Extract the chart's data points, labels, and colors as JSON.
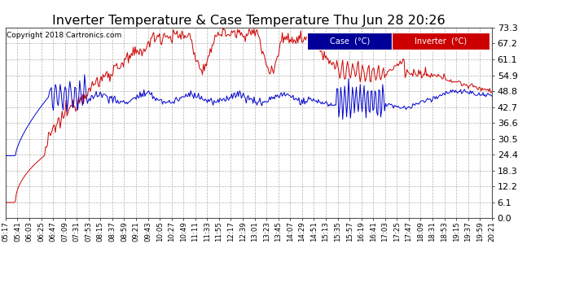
{
  "title": "Inverter Temperature & Case Temperature Thu Jun 28 20:26",
  "copyright": "Copyright 2018 Cartronics.com",
  "legend_case": "Case  (°C)",
  "legend_inverter": "Inverter  (°C)",
  "yticks": [
    0.0,
    6.1,
    12.2,
    18.3,
    24.4,
    30.5,
    36.6,
    42.7,
    48.8,
    54.9,
    61.1,
    67.2,
    73.3
  ],
  "ymin": 0.0,
  "ymax": 73.3,
  "xtick_labels": [
    "05:17",
    "05:41",
    "06:03",
    "06:25",
    "06:47",
    "07:09",
    "07:31",
    "07:53",
    "08:15",
    "08:37",
    "08:59",
    "09:21",
    "09:43",
    "10:05",
    "10:27",
    "10:49",
    "11:11",
    "11:33",
    "11:55",
    "12:17",
    "12:39",
    "13:01",
    "13:23",
    "13:45",
    "14:07",
    "14:29",
    "14:51",
    "15:13",
    "15:35",
    "15:57",
    "16:19",
    "16:41",
    "17:03",
    "17:25",
    "17:47",
    "18:09",
    "18:31",
    "18:53",
    "19:15",
    "19:37",
    "19:59",
    "20:21"
  ],
  "bg_color": "#ffffff",
  "plot_bg_color": "#ffffff",
  "fig_bg_color": "#ffffff",
  "grid_color": "#aaaaaa",
  "title_color": "#000000",
  "tick_color": "#000000",
  "case_color": "#0000cc",
  "inverter_color": "#cc0000",
  "legend_case_bg": "#000099",
  "legend_inverter_bg": "#cc0000"
}
